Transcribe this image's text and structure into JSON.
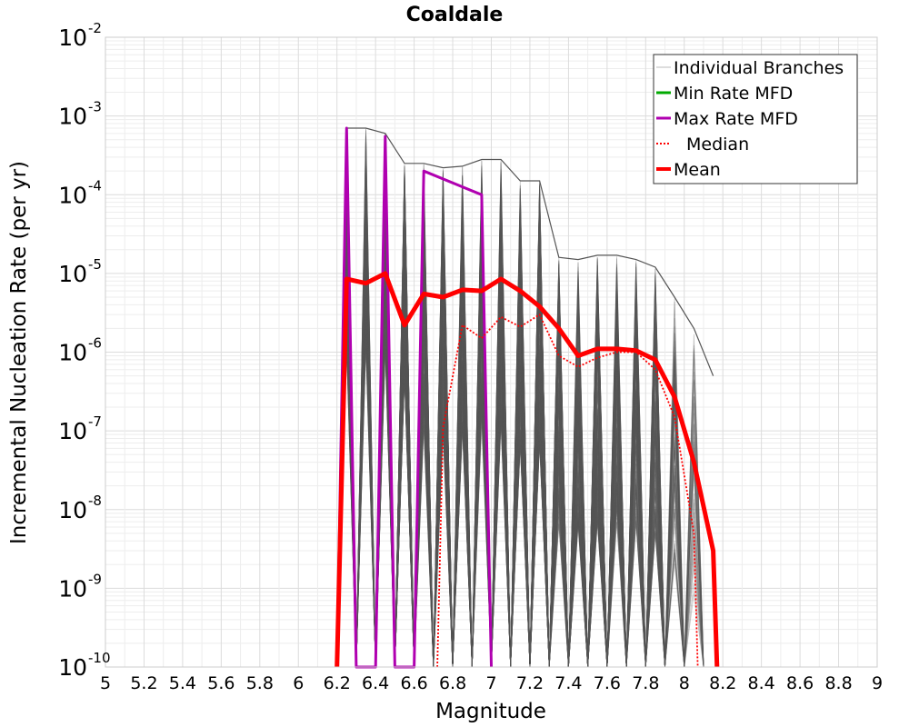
{
  "chart_data": {
    "type": "line",
    "title": "Coaldale",
    "xlabel": "Magnitude",
    "ylabel": "Incremental Nucleation Rate (per yr)",
    "xlim": [
      5,
      9
    ],
    "ylim": [
      1e-10,
      0.01
    ],
    "yscale": "log",
    "grid": true,
    "legend_position": "top-right",
    "x_ticks": [
      "5",
      "5.2",
      "5.4",
      "5.6",
      "5.8",
      "6",
      "6.2",
      "6.4",
      "6.6",
      "6.8",
      "7",
      "7.2",
      "7.4",
      "7.6",
      "7.8",
      "8",
      "8.2",
      "8.4",
      "8.6",
      "8.8",
      "9"
    ],
    "y_ticks": [
      {
        "base": "10",
        "exp": "-10"
      },
      {
        "base": "10",
        "exp": "-9"
      },
      {
        "base": "10",
        "exp": "-8"
      },
      {
        "base": "10",
        "exp": "-7"
      },
      {
        "base": "10",
        "exp": "-6"
      },
      {
        "base": "10",
        "exp": "-5"
      },
      {
        "base": "10",
        "exp": "-4"
      },
      {
        "base": "10",
        "exp": "-3"
      },
      {
        "base": "10",
        "exp": "-2"
      }
    ],
    "series": [
      {
        "name": "Individual Branches",
        "color": "#555555",
        "style": "thin",
        "branch_count": "many",
        "x": [
          6.25,
          6.35,
          6.45,
          6.55,
          6.65,
          6.75,
          6.85,
          6.95,
          7.05,
          7.15,
          7.25,
          7.35,
          7.45,
          7.55,
          7.65,
          7.75,
          7.85,
          7.95,
          8.05,
          8.15
        ],
        "upper_envelope": [
          0.0007,
          0.0007,
          0.0006,
          0.00025,
          0.00025,
          0.00022,
          0.00023,
          0.00028,
          0.00028,
          0.00015,
          0.00015,
          1.6e-05,
          1.5e-05,
          1.7e-05,
          1.7e-05,
          1.5e-05,
          1.2e-05,
          5e-06,
          2e-06,
          5e-07
        ]
      },
      {
        "name": "Min Rate MFD",
        "color": "#00aa00",
        "style": "solid",
        "x": [],
        "y": []
      },
      {
        "name": "Max Rate MFD",
        "color": "#b000b0",
        "style": "solid",
        "x": [
          6.2,
          6.25,
          6.3,
          6.4,
          6.45,
          6.5,
          6.6,
          6.65,
          6.95,
          7.0
        ],
        "y": [
          1e-10,
          0.0007,
          1e-10,
          1e-10,
          0.00055,
          1e-10,
          1e-10,
          0.0002,
          0.0001,
          1e-10
        ]
      },
      {
        "name": "Median",
        "color": "#ff0000",
        "style": "dotted",
        "x": [
          6.72,
          6.75,
          6.85,
          6.95,
          7.05,
          7.15,
          7.25,
          7.35,
          7.45,
          7.55,
          7.65,
          7.75,
          7.85,
          7.95,
          8.05,
          8.07
        ],
        "y": [
          1e-10,
          1.1e-07,
          2.2e-06,
          1.5e-06,
          2.8e-06,
          2.1e-06,
          3e-06,
          9e-07,
          6.5e-07,
          8.5e-07,
          1e-06,
          1e-06,
          6e-07,
          1.5e-07,
          5e-09,
          1e-10
        ]
      },
      {
        "name": "Mean",
        "color": "#ff0000",
        "style": "thick",
        "x": [
          6.2,
          6.25,
          6.35,
          6.45,
          6.55,
          6.65,
          6.75,
          6.85,
          6.95,
          7.05,
          7.15,
          7.25,
          7.35,
          7.45,
          7.55,
          7.65,
          7.75,
          7.85,
          7.95,
          8.05,
          8.15,
          8.17
        ],
        "y": [
          1e-10,
          8.5e-06,
          7.5e-06,
          1e-05,
          2.2e-06,
          5.5e-06,
          5e-06,
          6.2e-06,
          6e-06,
          8.5e-06,
          6e-06,
          3.8e-06,
          2e-06,
          9e-07,
          1.1e-06,
          1.1e-06,
          1.05e-06,
          8e-07,
          2.7e-07,
          4e-08,
          3e-09,
          1e-10
        ]
      }
    ]
  }
}
